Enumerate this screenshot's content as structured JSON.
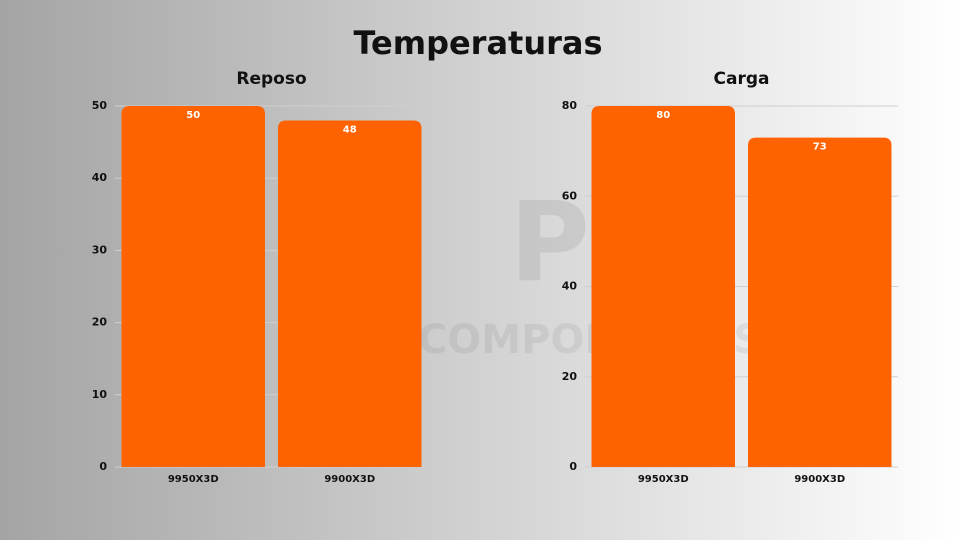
{
  "title": "Temperaturas",
  "watermark": {
    "logo": "PC",
    "text": "COMPONENTES"
  },
  "chart_data": [
    {
      "type": "bar",
      "title": "Reposo",
      "categories": [
        "9950X3D",
        "9900X3D"
      ],
      "values": [
        50,
        48
      ],
      "color": "#ff6200",
      "ylim": [
        0,
        50
      ],
      "yticks": [
        0,
        10,
        20,
        30,
        40,
        50
      ],
      "grid": true
    },
    {
      "type": "bar",
      "title": "Carga",
      "categories": [
        "9950X3D",
        "9900X3D"
      ],
      "values": [
        80,
        73
      ],
      "color": "#ff6200",
      "ylim": [
        0,
        80
      ],
      "yticks": [
        0,
        20,
        40,
        60,
        80
      ],
      "grid": true
    }
  ]
}
